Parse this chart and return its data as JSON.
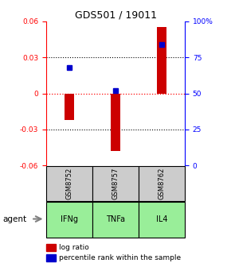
{
  "title": "GDS501 / 19011",
  "samples": [
    "GSM8752",
    "GSM8757",
    "GSM8762"
  ],
  "agents": [
    "IFNg",
    "TNFa",
    "IL4"
  ],
  "log_ratios": [
    -0.022,
    -0.048,
    0.055
  ],
  "percentile_ranks": [
    68,
    52,
    84
  ],
  "ylim": [
    -0.06,
    0.06
  ],
  "right_ylim": [
    0,
    100
  ],
  "bar_color": "#cc0000",
  "dot_color": "#0000cc",
  "sample_box_color": "#cccccc",
  "agent_box_color": "#99ee99",
  "background_color": "#ffffff",
  "legend_log_ratio_color": "#cc0000",
  "legend_percentile_color": "#0000cc",
  "left_yticks": [
    -0.06,
    -0.03,
    0,
    0.03,
    0.06
  ],
  "right_yticks": [
    0,
    25,
    50,
    75,
    100
  ],
  "right_yticklabels": [
    "0",
    "25",
    "50",
    "75",
    "100%"
  ]
}
